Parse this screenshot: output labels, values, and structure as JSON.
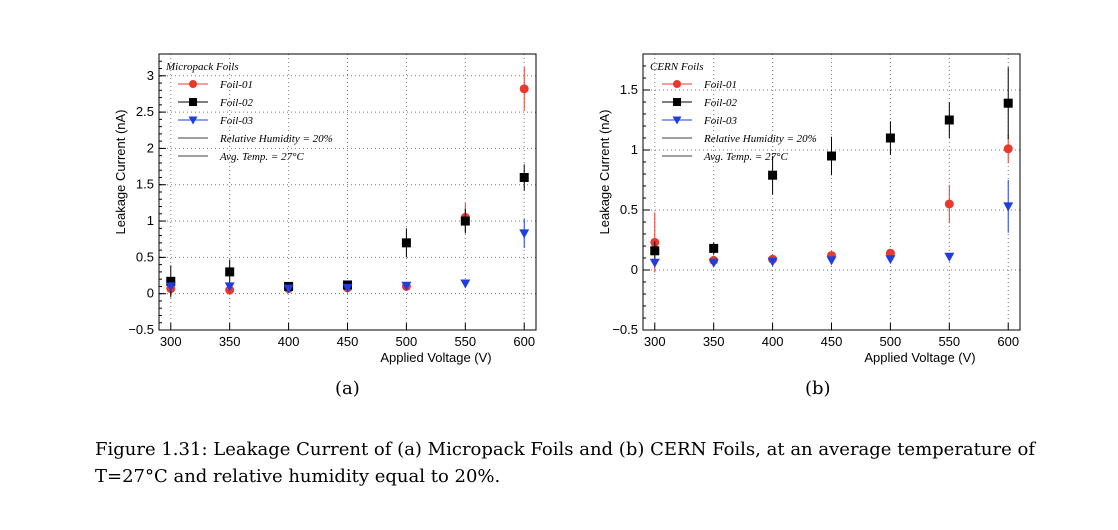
{
  "caption": "Figure 1.31: Leakage Current of (a) Micropack Foils and (b) CERN Foils, at an average temperature of T=27°C and relative humidity equal to 20%.",
  "chart_data": [
    {
      "type": "scatter",
      "panel_label": "(a)",
      "legend_title": "Micropack Foils",
      "xlabel": "Applied Voltage (V)",
      "ylabel": "Leakage Current (nA)",
      "xlim": [
        290,
        610
      ],
      "ylim": [
        -0.5,
        3.3
      ],
      "x_ticks": [
        300,
        350,
        400,
        450,
        500,
        550,
        600
      ],
      "y_ticks": [
        -0.5,
        0,
        0.5,
        1,
        1.5,
        2,
        2.5,
        3
      ],
      "y_tick_labels": [
        "−0.5",
        "0",
        "0.5",
        "1",
        "1.5",
        "2",
        "2.5",
        "3"
      ],
      "grid": true,
      "x": [
        300,
        350,
        400,
        450,
        500,
        550,
        600
      ],
      "series": [
        {
          "name": "Foil-01",
          "color": "#e8392c",
          "marker": "circle",
          "values": [
            0.07,
            0.05,
            0.07,
            0.08,
            0.1,
            1.05,
            2.82
          ],
          "errors": [
            0.1,
            0.05,
            0.03,
            0.03,
            0.05,
            0.2,
            0.3
          ]
        },
        {
          "name": "Foil-02",
          "color": "#000000",
          "marker": "square",
          "values": [
            0.17,
            0.3,
            0.1,
            0.12,
            0.7,
            1.0,
            1.6
          ],
          "errors": [
            0.22,
            0.17,
            0.06,
            0.05,
            0.2,
            0.17,
            0.18
          ]
        },
        {
          "name": "Foil-03",
          "color": "#1f3ee0",
          "marker": "triangle-down",
          "values": [
            0.1,
            0.1,
            0.07,
            0.08,
            0.11,
            0.14,
            0.83
          ],
          "errors": [
            0.05,
            0.04,
            0.03,
            0.03,
            0.03,
            0.03,
            0.2
          ]
        }
      ],
      "legend_notes": [
        "Relative Humidity = 20%",
        "Avg. Temp. = 27°C"
      ]
    },
    {
      "type": "scatter",
      "panel_label": "(b)",
      "legend_title": "CERN Foils",
      "xlabel": "Applied Voltage (V)",
      "ylabel": "Leakage Current (nA)",
      "xlim": [
        290,
        610
      ],
      "ylim": [
        -0.5,
        1.8
      ],
      "x_ticks": [
        300,
        350,
        400,
        450,
        500,
        550,
        600
      ],
      "y_ticks": [
        -0.5,
        0,
        0.5,
        1,
        1.5
      ],
      "y_tick_labels": [
        "−0.5",
        "0",
        "0.5",
        "1",
        "1.5"
      ],
      "grid": true,
      "x": [
        300,
        350,
        400,
        450,
        500,
        550,
        600
      ],
      "series": [
        {
          "name": "Foil-01",
          "color": "#e8392c",
          "marker": "circle",
          "values": [
            0.23,
            0.08,
            0.09,
            0.12,
            0.14,
            0.55,
            1.01
          ],
          "errors": [
            0.25,
            0.04,
            0.03,
            0.03,
            0.03,
            0.16,
            0.12
          ]
        },
        {
          "name": "Foil-02",
          "color": "#000000",
          "marker": "square",
          "values": [
            0.16,
            0.18,
            0.79,
            0.95,
            1.1,
            1.25,
            1.39
          ],
          "errors": [
            0.08,
            0.05,
            0.16,
            0.16,
            0.14,
            0.15,
            0.3
          ]
        },
        {
          "name": "Foil-03",
          "color": "#1f3ee0",
          "marker": "triangle-down",
          "values": [
            0.06,
            0.06,
            0.07,
            0.08,
            0.09,
            0.11,
            0.53
          ],
          "errors": [
            0.04,
            0.03,
            0.03,
            0.03,
            0.03,
            0.03,
            0.22
          ]
        }
      ],
      "legend_notes": [
        "Relative Humidity = 20%",
        "Avg. Temp. = 27°C"
      ]
    }
  ]
}
